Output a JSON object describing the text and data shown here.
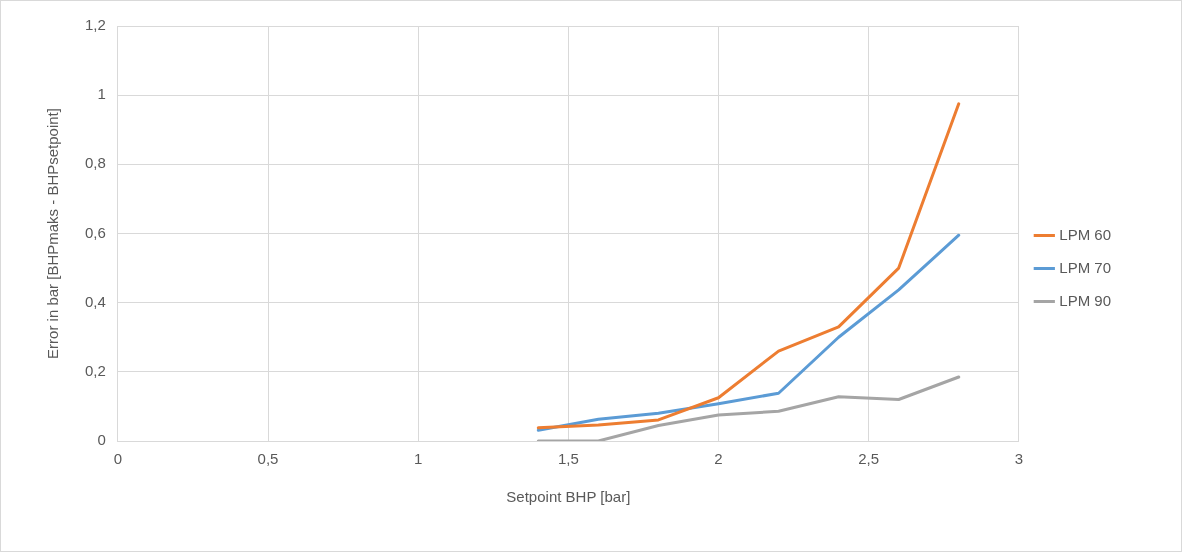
{
  "chart_data": {
    "type": "line",
    "xlabel": "Setpoint BHP [bar]",
    "ylabel": "Error in bar [BHPmaks - BHPsetpoint]",
    "x": [
      1.4,
      1.6,
      1.8,
      2.0,
      2.2,
      2.4,
      2.6,
      2.8
    ],
    "series": [
      {
        "name": "LPM 60",
        "color": "#ed7d31",
        "values": [
          0.038,
          0.046,
          0.061,
          0.125,
          0.26,
          0.33,
          0.5,
          0.975
        ]
      },
      {
        "name": "LPM 70",
        "color": "#5b9bd5",
        "values": [
          0.031,
          0.063,
          0.08,
          0.108,
          0.138,
          0.3,
          0.437,
          0.595
        ]
      },
      {
        "name": "LPM 90",
        "color": "#a5a5a5",
        "values": [
          0,
          0,
          0.045,
          0.075,
          0.086,
          0.128,
          0.12,
          0.185
        ]
      }
    ],
    "xlim": [
      0,
      3
    ],
    "xticks": [
      {
        "value": 0,
        "label": "0"
      },
      {
        "value": 0.5,
        "label": "0,5"
      },
      {
        "value": 1,
        "label": "1"
      },
      {
        "value": 1.5,
        "label": "1,5"
      },
      {
        "value": 2,
        "label": "2"
      },
      {
        "value": 2.5,
        "label": "2,5"
      },
      {
        "value": 3,
        "label": "3"
      }
    ],
    "ylim": [
      0,
      1.2
    ],
    "yticks": [
      {
        "value": 0,
        "label": "0"
      },
      {
        "value": 0.2,
        "label": "0,2"
      },
      {
        "value": 0.4,
        "label": "0,4"
      },
      {
        "value": 0.6,
        "label": "0,6"
      },
      {
        "value": 0.8,
        "label": "0,8"
      },
      {
        "value": 1,
        "label": "1"
      },
      {
        "value": 1.2,
        "label": "1,2"
      }
    ],
    "grid": true,
    "legend": "right",
    "marker": "none",
    "line_style": "solid"
  }
}
